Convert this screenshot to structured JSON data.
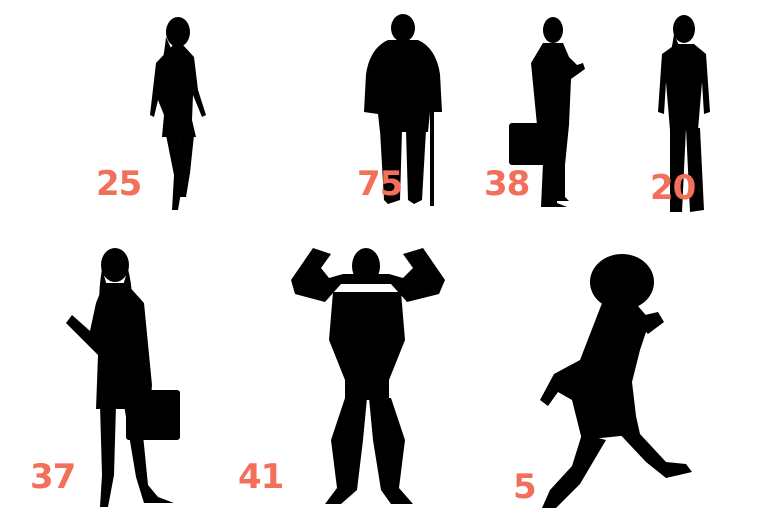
{
  "colors": {
    "background": "#ffffff",
    "silhouette": "#000000",
    "age_label": "#f2705a"
  },
  "figures": [
    {
      "name": "woman-walking-silhouette",
      "age": "25"
    },
    {
      "name": "elderly-man-with-cane-silhouette",
      "age": "75"
    },
    {
      "name": "businessman-with-briefcase-silhouette",
      "age": "38"
    },
    {
      "name": "woman-in-suit-silhouette",
      "age": "20"
    },
    {
      "name": "businesswoman-with-bag-silhouette",
      "age": "37"
    },
    {
      "name": "bodybuilder-flexing-silhouette",
      "age": "41"
    },
    {
      "name": "child-running-silhouette",
      "age": "5"
    }
  ]
}
